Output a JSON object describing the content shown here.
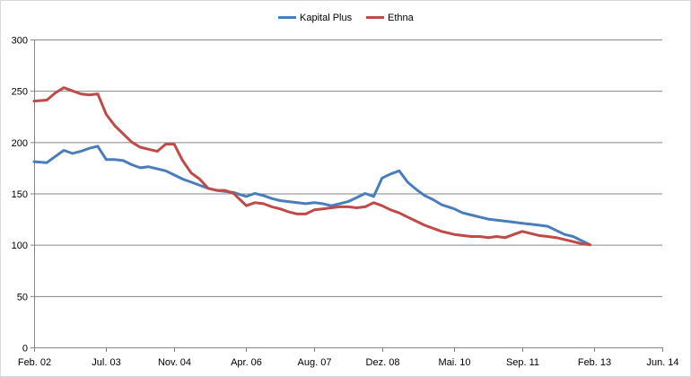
{
  "chart_data": {
    "type": "line",
    "title": "",
    "xlabel": "",
    "ylabel": "",
    "ylim": [
      0,
      300
    ],
    "yticks": [
      0,
      50,
      100,
      150,
      200,
      250,
      300
    ],
    "xlim_months": [
      "Feb. 02",
      "Jun. 14"
    ],
    "xticks": [
      "Feb. 02",
      "Jul. 03",
      "Nov. 04",
      "Apr. 06",
      "Aug. 07",
      "Dez. 08",
      "Mai. 10",
      "Sep. 11",
      "Feb. 13",
      "Jun. 14"
    ],
    "grid": "horizontal",
    "legend_position": "top",
    "x": [
      "Feb. 02",
      "Mai. 02",
      "Jul. 02",
      "Sep. 02",
      "Nov. 02",
      "Jan. 03",
      "Mär. 03",
      "Mai. 03",
      "Jul. 03",
      "Sep. 03",
      "Nov. 03",
      "Jan. 04",
      "Mär. 04",
      "Mai. 04",
      "Jul. 04",
      "Sep. 04",
      "Nov. 04",
      "Jan. 05",
      "Mär. 05",
      "Mai. 05",
      "Jul. 05",
      "Sep. 05",
      "Nov. 05",
      "Jan. 06",
      "Apr. 06",
      "Jun. 06",
      "Aug. 06",
      "Okt. 06",
      "Dez. 06",
      "Feb. 07",
      "Apr. 07",
      "Jun. 07",
      "Aug. 07",
      "Okt. 07",
      "Dez. 07",
      "Feb. 08",
      "Apr. 08",
      "Jun. 08",
      "Aug. 08",
      "Okt. 08",
      "Dez. 08",
      "Feb. 09",
      "Apr. 09",
      "Jun. 09",
      "Aug. 09",
      "Okt. 09",
      "Dez. 09",
      "Feb. 10",
      "Mai. 10",
      "Jul. 10",
      "Sep. 10",
      "Nov. 10",
      "Jan. 11",
      "Mär. 11",
      "Mai. 11",
      "Jul. 11",
      "Sep. 11",
      "Nov. 11",
      "Jan. 12",
      "Mär. 12",
      "Mai. 12",
      "Jul. 12",
      "Sep. 12",
      "Nov. 12",
      "Jan. 13"
    ],
    "series": [
      {
        "name": "Kapital Plus",
        "color": "#4a7ebb",
        "values": [
          181,
          180,
          186,
          192,
          189,
          191,
          194,
          196,
          183,
          183,
          182,
          178,
          175,
          176,
          174,
          172,
          168,
          164,
          161,
          158,
          155,
          153,
          152,
          151,
          147,
          150,
          148,
          145,
          143,
          142,
          141,
          140,
          141,
          140,
          138,
          140,
          142,
          146,
          150,
          147,
          165,
          169,
          172,
          161,
          154,
          148,
          144,
          139,
          135,
          131,
          129,
          127,
          125,
          124,
          123,
          122,
          121,
          120,
          119,
          118,
          114,
          110,
          108,
          104,
          100
        ]
      },
      {
        "name": "Ethna",
        "color": "#be4b48",
        "values": [
          240,
          241,
          248,
          253,
          250,
          247,
          246,
          247,
          227,
          216,
          208,
          200,
          195,
          193,
          191,
          198,
          198,
          182,
          170,
          164,
          155,
          153,
          153,
          150,
          138,
          141,
          140,
          137,
          135,
          132,
          130,
          130,
          134,
          135,
          136,
          137,
          137,
          136,
          137,
          141,
          138,
          134,
          131,
          127,
          123,
          119,
          116,
          113,
          110,
          109,
          108,
          108,
          107,
          108,
          107,
          110,
          113,
          111,
          109,
          108,
          107,
          105,
          103,
          101,
          100
        ]
      }
    ]
  }
}
